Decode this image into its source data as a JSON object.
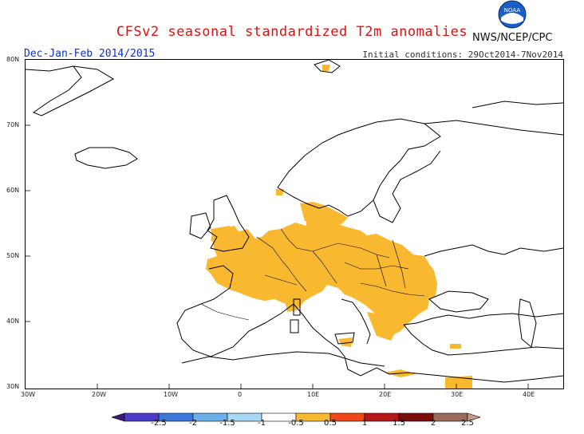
{
  "title": "CFSv2 seasonal standardized T2m anomalies",
  "period": "Dec-Jan-Feb 2014/2015",
  "initial_conditions": "Initial conditions: 29Oct2014-7Nov2014",
  "agency": "NWS/NCEP/CPC",
  "logo_text": "NOAA",
  "lat_labels": [
    "80N",
    "70N",
    "60N",
    "50N",
    "40N",
    "30N"
  ],
  "lon_labels": [
    "30W",
    "20W",
    "10W",
    "0",
    "10E",
    "20E",
    "30E",
    "40E"
  ],
  "colorbar": {
    "labels": [
      "-2.5",
      "-2",
      "-1.5",
      "-1",
      "-0.5",
      "0.5",
      "1",
      "1.5",
      "2",
      "2.5"
    ],
    "colors": [
      "#3a1a7a",
      "#4a3cc8",
      "#3c78dc",
      "#6ab0ea",
      "#a8d8f4",
      "#ffffff",
      "#f8b830",
      "#f04818",
      "#b41818",
      "#7a0c0c",
      "#9a6a5a",
      "#c89a88"
    ]
  },
  "anomaly_color": "#f8b830",
  "map_colors": {
    "coast": "#000000",
    "fill": "#f8b830",
    "background": "#ffffff"
  }
}
